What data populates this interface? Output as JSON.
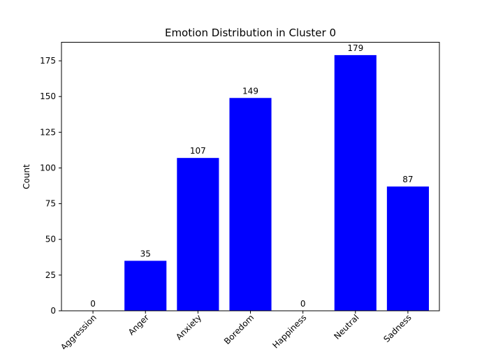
{
  "chart_data": {
    "type": "bar",
    "title": "Emotion Distribution in Cluster 0",
    "xlabel": "",
    "ylabel": "Count",
    "categories": [
      "Aggression",
      "Anger",
      "Anxiety",
      "Boredom",
      "Happiness",
      "Neutral",
      "Sadness"
    ],
    "values": [
      0,
      35,
      107,
      149,
      0,
      179,
      87
    ],
    "data_labels": [
      "0",
      "35",
      "107",
      "149",
      "0",
      "179",
      "87"
    ],
    "ylim": [
      0,
      188
    ],
    "yticks": [
      0,
      25,
      50,
      75,
      100,
      125,
      150,
      175
    ],
    "ytick_labels": [
      "0",
      "25",
      "50",
      "75",
      "100",
      "125",
      "150",
      "175"
    ],
    "bar_color": "#0000ff",
    "xtick_rotation_deg": 45,
    "grid": false,
    "legend": "none"
  }
}
